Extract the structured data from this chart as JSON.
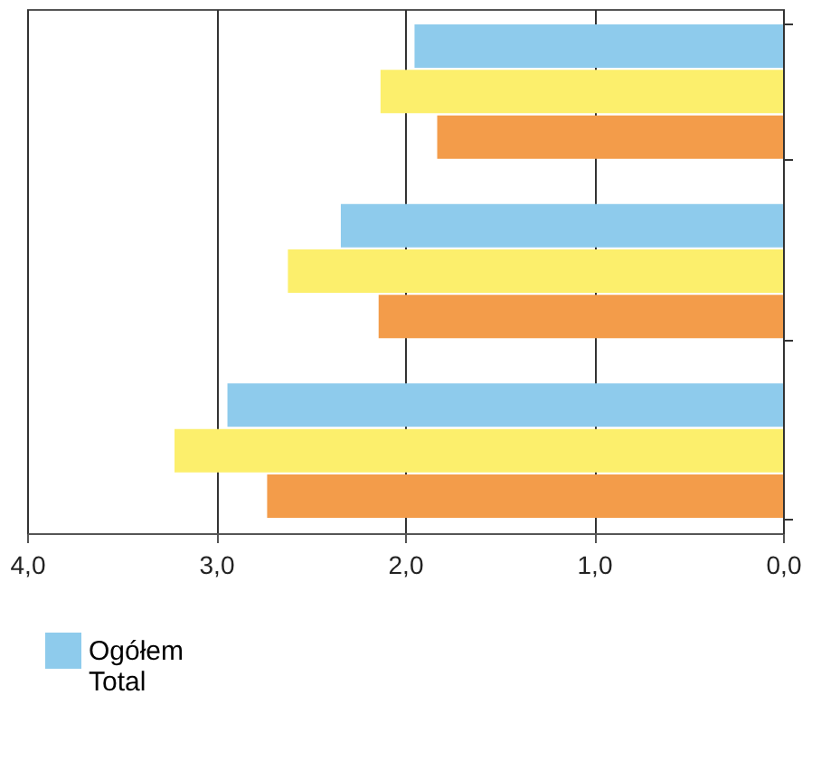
{
  "chart_data": {
    "type": "bar",
    "orientation": "horizontal",
    "categories": [
      null,
      null,
      null
    ],
    "series": [
      {
        "name": "Ogółem\nTotal",
        "color": "#8ecbec",
        "values": [
          1.95,
          2.34,
          2.94
        ]
      },
      {
        "color": "#fcef6c",
        "values": [
          2.13,
          2.62,
          3.22
        ]
      },
      {
        "color": "#f39c4a",
        "values": [
          1.83,
          2.14,
          2.73
        ]
      }
    ],
    "xlim": [
      4.0,
      0.0
    ],
    "xticks": [
      {
        "value": 4,
        "label": "4,0"
      },
      {
        "value": 3,
        "label": "3,0"
      },
      {
        "value": 2,
        "label": "2,0"
      },
      {
        "value": 1,
        "label": "1,0"
      },
      {
        "value": 0,
        "label": "0,0"
      }
    ],
    "grid": "x",
    "legend": "bottom",
    "tick_labels": "x"
  }
}
